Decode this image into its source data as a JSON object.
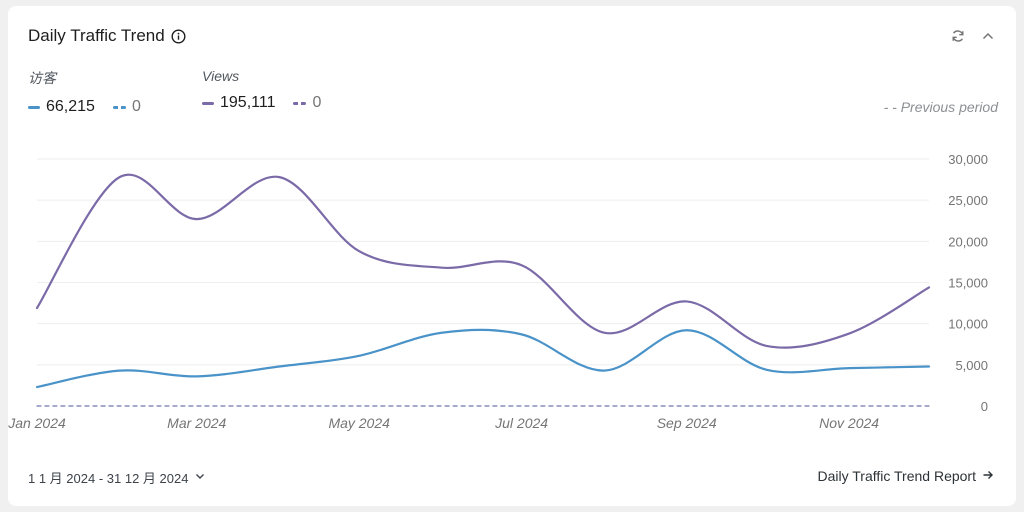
{
  "card": {
    "title": "Daily Traffic Trend",
    "info_icon": "info-icon",
    "refresh_icon": "refresh-icon",
    "collapse_icon": "chevron-up-icon"
  },
  "legend": {
    "visitors": {
      "label": "访客",
      "current": "66,215",
      "previous": "0",
      "color": "#4a93c9"
    },
    "views": {
      "label": "Views",
      "current": "195,111",
      "previous": "0",
      "color": "#7b6aa8"
    },
    "previous_period_label": "- -  Previous period"
  },
  "chart_data": {
    "type": "line",
    "x": [
      "2024-01-01",
      "2024-02-01",
      "2024-03-01",
      "2024-04-01",
      "2024-05-01",
      "2024-06-01",
      "2024-07-01",
      "2024-08-01",
      "2024-09-01",
      "2024-10-01",
      "2024-11-01",
      "2024-12-01"
    ],
    "x_tick_labels": [
      {
        "date": "2024-01-01",
        "label": "Jan 2024"
      },
      {
        "date": "2024-03-01",
        "label": "Mar 2024"
      },
      {
        "date": "2024-05-01",
        "label": "May 2024"
      },
      {
        "date": "2024-07-01",
        "label": "Jul 2024"
      },
      {
        "date": "2024-09-01",
        "label": "Sep 2024"
      },
      {
        "date": "2024-11-01",
        "label": "Nov 2024"
      }
    ],
    "y_ticks": [
      "0",
      "5,000",
      "10,000",
      "15,000",
      "20,000",
      "25,000",
      "30,000"
    ],
    "ylim": [
      0,
      30000
    ],
    "grid": true,
    "series": [
      {
        "name": "访客",
        "color": "#4a93c9",
        "dashed": false,
        "values": [
          2300,
          4300,
          3600,
          4800,
          6100,
          8900,
          8700,
          4300,
          9200,
          4400,
          4600,
          4800
        ]
      },
      {
        "name": "Views",
        "color": "#7b6aa8",
        "dashed": false,
        "values": [
          11900,
          27800,
          22700,
          27800,
          18800,
          16800,
          17100,
          8900,
          12700,
          7300,
          8800,
          14400
        ]
      },
      {
        "name": "访客",
        "color": "#4a93c9",
        "dashed": true,
        "values": [
          0,
          0,
          0,
          0,
          0,
          0,
          0,
          0,
          0,
          0,
          0,
          0
        ]
      },
      {
        "name": "Views",
        "color": "#7b6aa8",
        "dashed": true,
        "values": [
          0,
          0,
          0,
          0,
          0,
          0,
          0,
          0,
          0,
          0,
          0,
          0
        ]
      }
    ]
  },
  "footer": {
    "date_range": "1 1 月 2024 - 31 12 月 2024",
    "report_link": "Daily Traffic Trend Report"
  }
}
